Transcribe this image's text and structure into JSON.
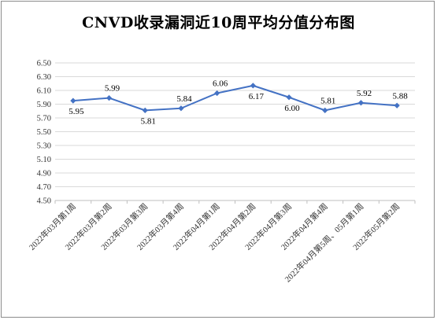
{
  "chart_data": {
    "type": "line",
    "title": "CNVD收录漏洞近10周平均分值分布图",
    "categories": [
      "2022年03月第1周",
      "2022年03月第2周",
      "2022年03月第3周",
      "2022年03月第4周",
      "2022年04月第1周",
      "2022年04月第2周",
      "2022年04月第3周",
      "2022年04月第4周",
      "2022年04月第5周、05月第1周",
      "2022年05月第2周"
    ],
    "values": [
      5.95,
      5.99,
      5.81,
      5.84,
      6.06,
      6.17,
      6.0,
      5.81,
      5.92,
      5.88
    ],
    "value_labels": [
      "5.95",
      "5.99",
      "5.81",
      "5.84",
      "6.06",
      "6.17",
      "6.00",
      "5.81",
      "5.92",
      "5.88"
    ],
    "y_ticks": [
      "4.50",
      "4.70",
      "4.90",
      "5.10",
      "5.30",
      "5.50",
      "5.70",
      "5.90",
      "6.10",
      "6.30",
      "6.50"
    ],
    "ylim": [
      4.5,
      6.5
    ],
    "grid": true,
    "legend": "none",
    "color": "#4472c4"
  }
}
